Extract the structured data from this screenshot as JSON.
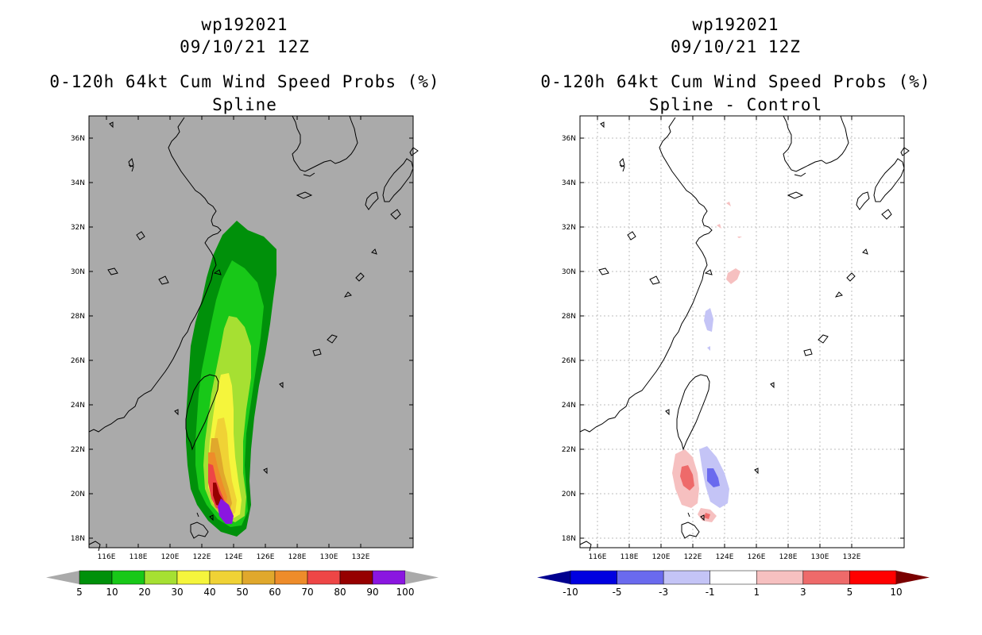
{
  "panels": [
    {
      "id": "left",
      "title": {
        "storm_id": "wp192021",
        "datetime": "09/10/21 12Z",
        "product": "0-120h 64kt Cum Wind Speed Probs (%)",
        "subtitle": "Spline"
      },
      "lat_ticks": [
        "36N",
        "34N",
        "32N",
        "30N",
        "28N",
        "26N",
        "24N",
        "22N",
        "20N",
        "18N"
      ],
      "lon_ticks": [
        "116E",
        "118E",
        "120E",
        "122E",
        "124E",
        "126E",
        "128E",
        "130E",
        "132E"
      ],
      "colorbar": {
        "labels": [
          "5",
          "10",
          "20",
          "30",
          "40",
          "50",
          "60",
          "70",
          "80",
          "90",
          "100"
        ],
        "colors": [
          "#00900a",
          "#18c818",
          "#a6e032",
          "#f5f53c",
          "#f0d235",
          "#e0a82c",
          "#ee8c2a",
          "#ee4646",
          "#960000",
          "#8a16e0"
        ],
        "under_color": "#aaaaaa",
        "over_color": "#aaaaaa"
      }
    },
    {
      "id": "right",
      "title": {
        "storm_id": "wp192021",
        "datetime": "09/10/21 12Z",
        "product": "0-120h 64kt Cum Wind Speed Probs (%)",
        "subtitle": "Spline - Control"
      },
      "lat_ticks": [
        "36N",
        "34N",
        "32N",
        "30N",
        "28N",
        "26N",
        "24N",
        "22N",
        "20N",
        "18N"
      ],
      "lon_ticks": [
        "116E",
        "118E",
        "120E",
        "122E",
        "124E",
        "126E",
        "128E",
        "130E",
        "132E"
      ],
      "colorbar": {
        "labels": [
          "-10",
          "-5",
          "-3",
          "-1",
          "1",
          "3",
          "5",
          "10"
        ],
        "colors": [
          "#0000e0",
          "#6a6aee",
          "#c4c4f6",
          "#ffffff",
          "#f6c0c0",
          "#ee6a6a",
          "#ff0000"
        ],
        "under_color": "#000090",
        "over_color": "#7a0000"
      }
    }
  ]
}
